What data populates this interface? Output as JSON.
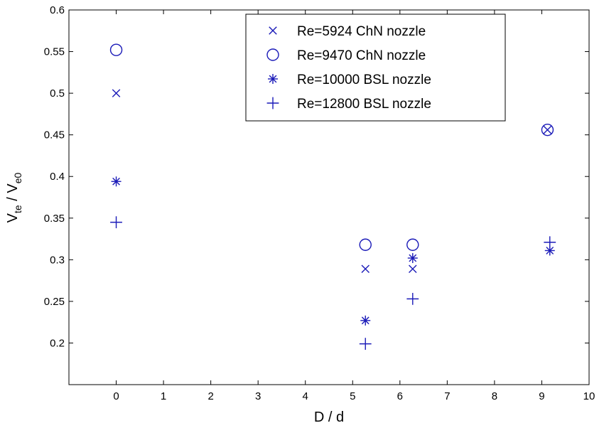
{
  "chart_data": {
    "type": "scatter",
    "title": "",
    "xlabel": "D / d",
    "ylabel": {
      "main": "V",
      "sub1": "te",
      "sep": " / V",
      "sub2": "e0"
    },
    "xlim": [
      -1,
      10
    ],
    "ylim": [
      0.15,
      0.6
    ],
    "xticks": [
      0,
      1,
      2,
      3,
      4,
      5,
      6,
      7,
      8,
      9,
      10
    ],
    "yticks": [
      0.2,
      0.25,
      0.3,
      0.35,
      0.4,
      0.45,
      0.5,
      0.55,
      0.6
    ],
    "grid": false,
    "legend_position": "top-right",
    "marker_color": "#1a1ab8",
    "series": [
      {
        "name": "Re=5924 ChN nozzle",
        "marker": "x",
        "points": [
          [
            0,
            0.5
          ],
          [
            5.27,
            0.289
          ],
          [
            6.27,
            0.289
          ],
          [
            9.12,
            0.456
          ]
        ]
      },
      {
        "name": "Re=9470 ChN nozzle",
        "marker": "o",
        "points": [
          [
            0,
            0.552
          ],
          [
            5.27,
            0.318
          ],
          [
            6.27,
            0.318
          ],
          [
            9.12,
            0.456
          ]
        ]
      },
      {
        "name": "Re=10000 BSL nozzle",
        "marker": "*",
        "points": [
          [
            0,
            0.394
          ],
          [
            5.27,
            0.227
          ],
          [
            6.27,
            0.302
          ],
          [
            9.17,
            0.311
          ]
        ]
      },
      {
        "name": "Re=12800 BSL nozzle",
        "marker": "+",
        "points": [
          [
            0,
            0.345
          ],
          [
            5.27,
            0.199
          ],
          [
            6.27,
            0.253
          ],
          [
            9.17,
            0.321
          ]
        ]
      }
    ]
  }
}
